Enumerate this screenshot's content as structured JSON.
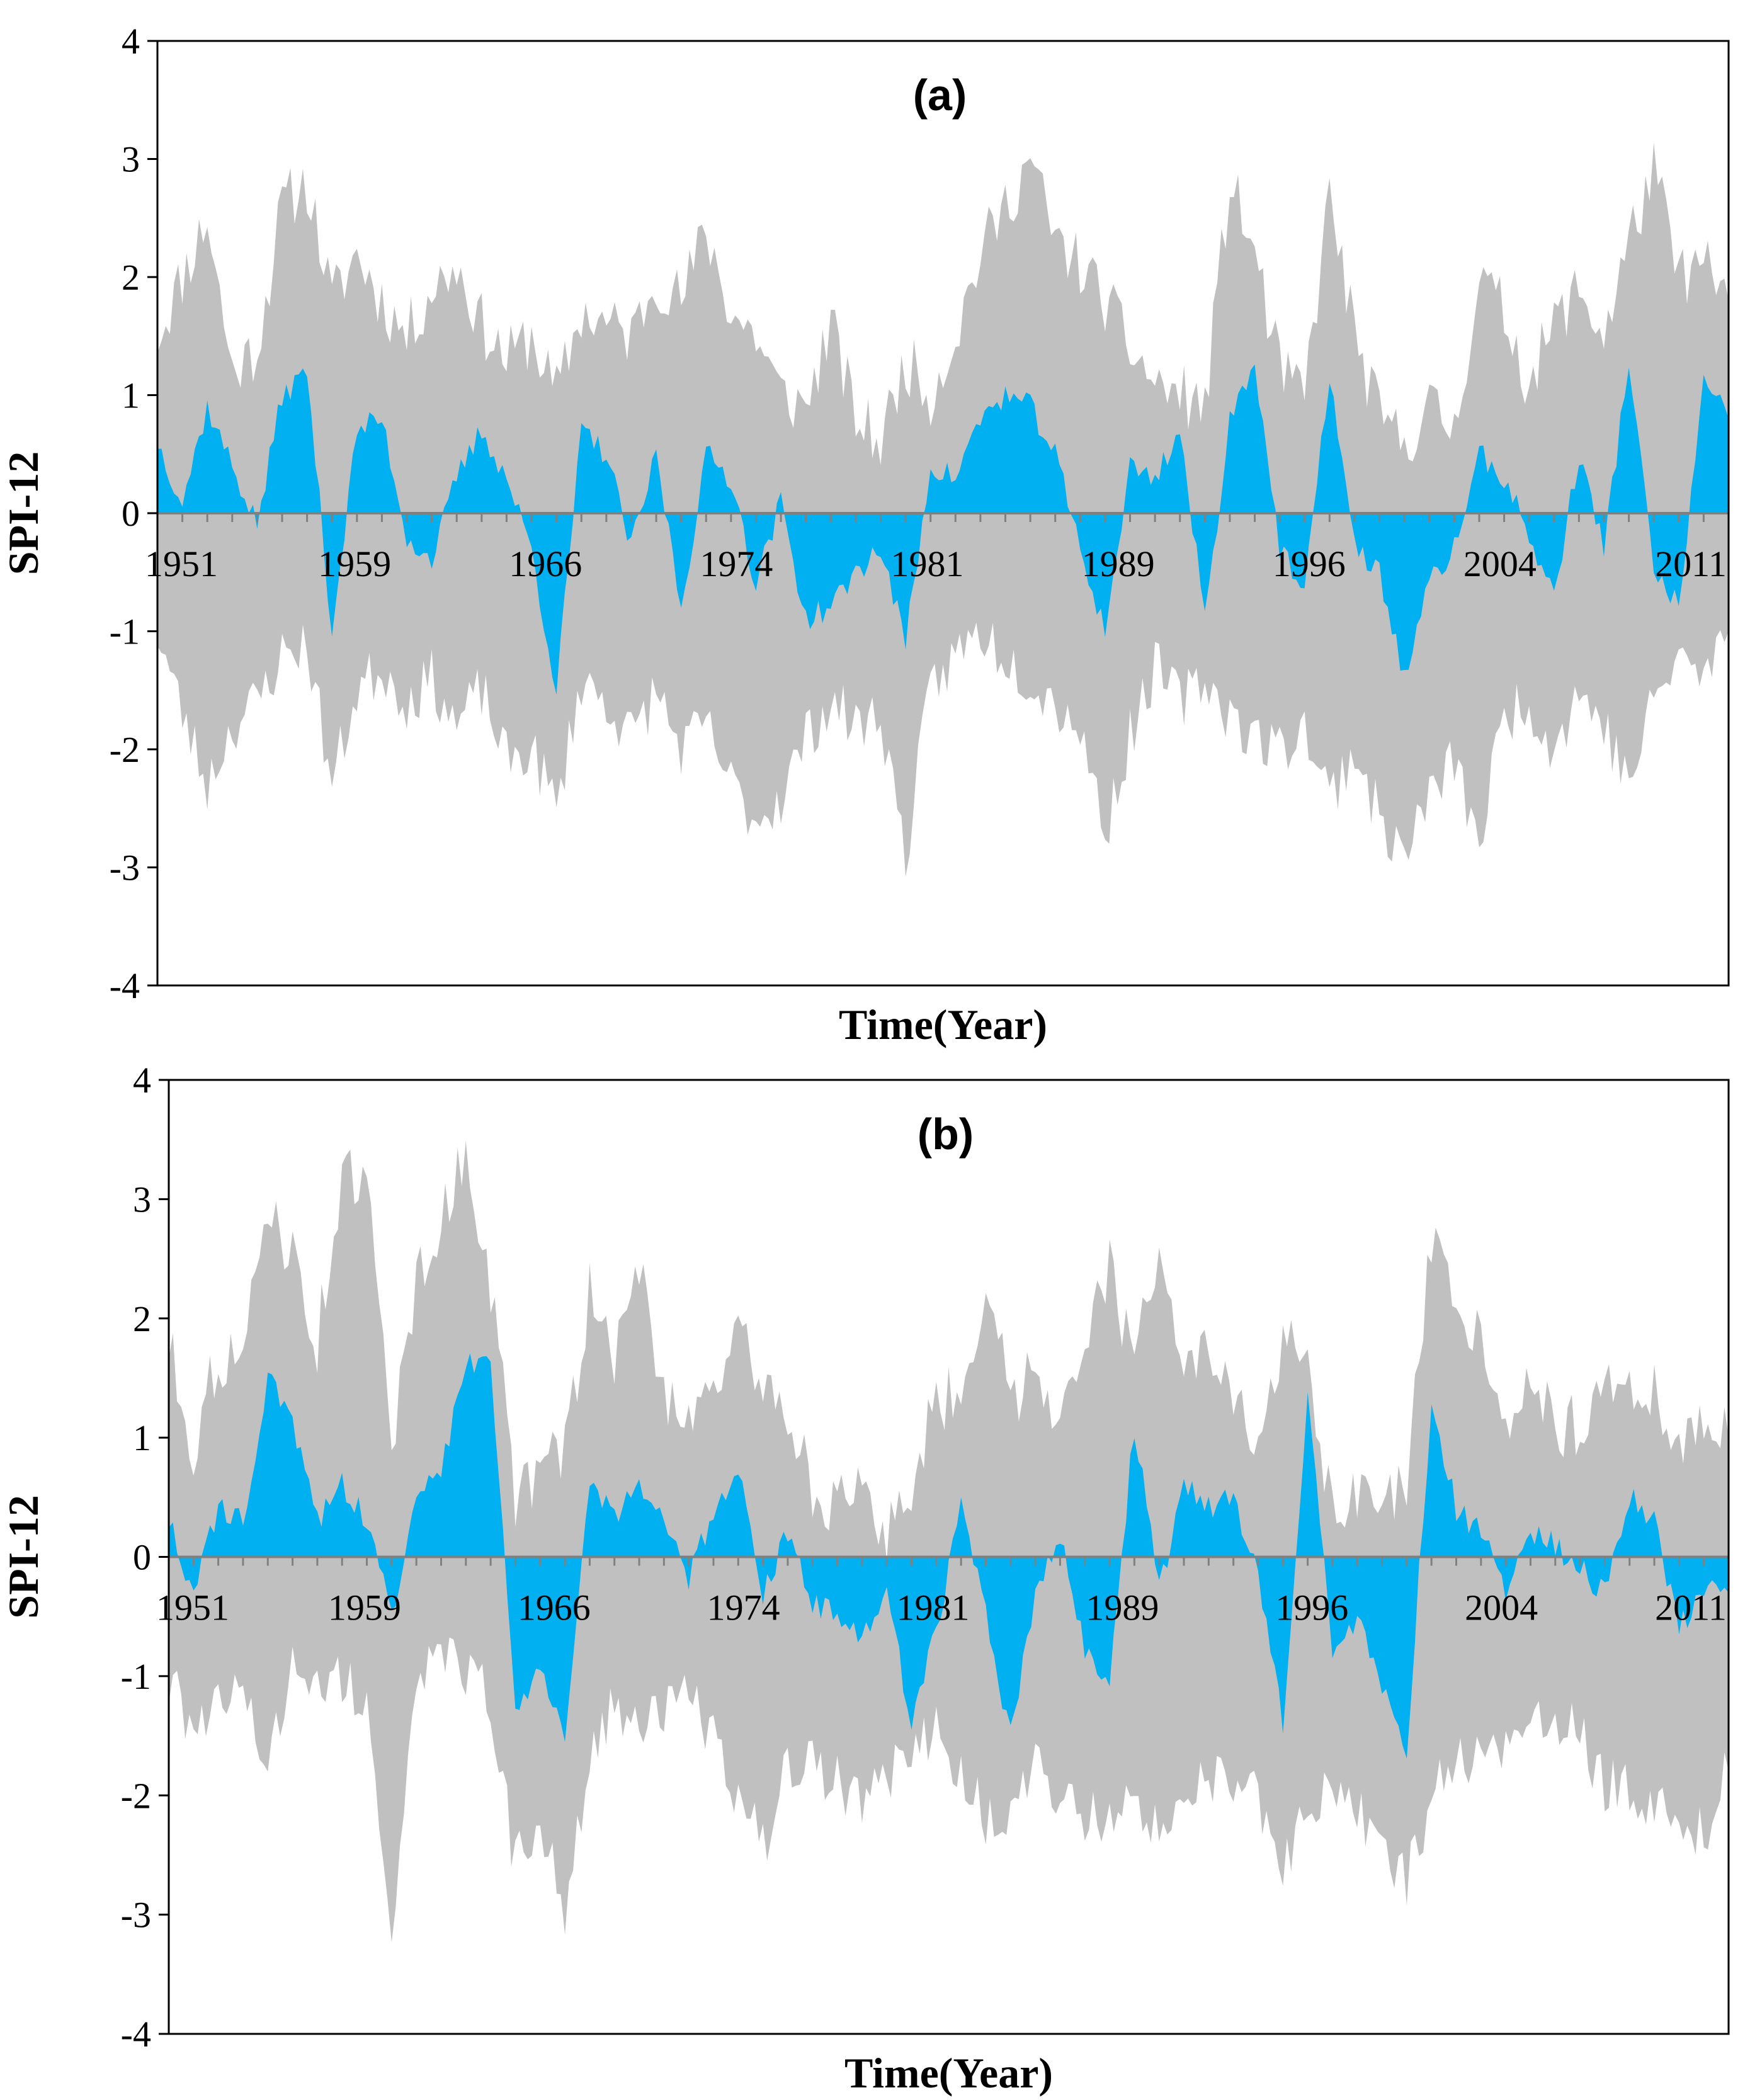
{
  "figure": {
    "colors": {
      "envelope": "#c0c0c0",
      "mean": "#00b0f0",
      "axis": "#808080",
      "frame": "#000000",
      "background": "#ffffff"
    }
  },
  "chart_data": [
    {
      "type": "area",
      "title": "(a)",
      "xlabel": "Time(Year)",
      "ylabel": "SPI-12",
      "xlim": [
        1951,
        2014
      ],
      "ylim": [
        -4,
        4
      ],
      "yticks": [
        -4,
        -3,
        -2,
        -1,
        0,
        1,
        2,
        3,
        4
      ],
      "xtick_labels": [
        "1951",
        "1959",
        "1966",
        "1974",
        "1981",
        "1989",
        "1996",
        "2004",
        "2011"
      ],
      "series": [
        {
          "name": "envelope",
          "x": [
            1951,
            1952,
            1953,
            1954,
            1955,
            1956,
            1957,
            1958,
            1959,
            1960,
            1961,
            1962,
            1963,
            1964,
            1965,
            1966,
            1967,
            1968,
            1969,
            1970,
            1971,
            1972,
            1973,
            1974,
            1975,
            1976,
            1977,
            1978,
            1979,
            1980,
            1981,
            1982,
            1983,
            1984,
            1985,
            1986,
            1987,
            1988,
            1989,
            1990,
            1991,
            1992,
            1993,
            1994,
            1995,
            1996,
            1997,
            1998,
            1999,
            2000,
            2001,
            2002,
            2003,
            2004,
            2005,
            2006,
            2007,
            2008,
            2009,
            2010,
            2011,
            2012,
            2013,
            2014
          ],
          "upper": [
            1.5,
            2.0,
            2.5,
            1.2,
            1.4,
            2.6,
            2.8,
            1.8,
            2.2,
            1.8,
            1.5,
            1.9,
            2.1,
            1.6,
            1.3,
            1.5,
            1.0,
            1.7,
            1.6,
            1.5,
            2.0,
            1.8,
            2.4,
            1.7,
            1.5,
            1.0,
            0.9,
            1.6,
            0.8,
            0.6,
            1.3,
            1.0,
            1.5,
            2.2,
            2.6,
            3.0,
            2.3,
            2.1,
            1.8,
            1.4,
            1.1,
            1.0,
            0.9,
            2.8,
            2.2,
            1.2,
            1.0,
            2.7,
            1.5,
            0.8,
            0.6,
            0.9,
            0.7,
            2.0,
            1.7,
            1.1,
            1.6,
            1.9,
            1.5,
            2.3,
            2.9,
            2.0,
            2.1,
            1.8
          ],
          "lower": [
            -1.0,
            -1.7,
            -2.3,
            -1.8,
            -1.6,
            -1.2,
            -1.1,
            -2.3,
            -1.5,
            -1.3,
            -1.6,
            -1.4,
            -1.8,
            -1.5,
            -2.1,
            -2.0,
            -2.5,
            -1.4,
            -1.6,
            -1.9,
            -1.5,
            -2.0,
            -1.8,
            -2.3,
            -2.6,
            -2.4,
            -1.9,
            -1.6,
            -1.8,
            -1.7,
            -2.9,
            -1.5,
            -1.2,
            -1.0,
            -1.2,
            -1.4,
            -1.6,
            -1.8,
            -2.7,
            -1.9,
            -1.3,
            -1.6,
            -1.4,
            -1.7,
            -1.9,
            -2.0,
            -1.8,
            -2.4,
            -2.0,
            -2.6,
            -2.9,
            -2.4,
            -2.1,
            -2.8,
            -1.7,
            -1.6,
            -2.0,
            -1.5,
            -1.8,
            -2.3,
            -1.6,
            -1.2,
            -1.4,
            -1.0
          ]
        },
        {
          "name": "mean",
          "x": [
            1951,
            1952,
            1953,
            1954,
            1955,
            1956,
            1957,
            1958,
            1959,
            1960,
            1961,
            1962,
            1963,
            1964,
            1965,
            1966,
            1967,
            1968,
            1969,
            1970,
            1971,
            1972,
            1973,
            1974,
            1975,
            1976,
            1977,
            1978,
            1979,
            1980,
            1981,
            1982,
            1983,
            1984,
            1985,
            1986,
            1987,
            1988,
            1989,
            1990,
            1991,
            1992,
            1993,
            1994,
            1995,
            1996,
            1997,
            1998,
            1999,
            2000,
            2001,
            2002,
            2003,
            2004,
            2005,
            2006,
            2007,
            2008,
            2009,
            2010,
            2011,
            2012,
            2013,
            2014
          ],
          "values": [
            0.6,
            0.1,
            0.9,
            0.4,
            -0.1,
            1.0,
            1.2,
            -1.0,
            0.7,
            0.8,
            -0.2,
            -0.4,
            0.3,
            0.7,
            0.3,
            -0.3,
            -1.5,
            0.7,
            0.5,
            -0.3,
            0.5,
            -0.8,
            0.5,
            0.3,
            -0.6,
            0.1,
            -0.9,
            -0.8,
            -0.5,
            -0.3,
            -1.1,
            0.4,
            0.3,
            0.8,
            1.0,
            0.9,
            0.5,
            -0.3,
            -1.0,
            0.4,
            0.3,
            0.7,
            -0.9,
            0.8,
            1.3,
            -0.3,
            -0.7,
            1.2,
            -0.3,
            -0.5,
            -1.4,
            -0.6,
            -0.3,
            0.5,
            0.3,
            -0.2,
            -0.7,
            0.5,
            -0.3,
            1.3,
            -0.5,
            -0.8,
            1.1,
            0.8
          ]
        }
      ]
    },
    {
      "type": "area",
      "title": "(b)",
      "xlabel": "Time(Year)",
      "ylabel": "SPI-12",
      "xlim": [
        1951,
        2014
      ],
      "ylim": [
        -4,
        4
      ],
      "yticks": [
        -4,
        -3,
        -2,
        -1,
        0,
        1,
        2,
        3,
        4
      ],
      "xtick_labels": [
        "1951",
        "1959",
        "1966",
        "1974",
        "1981",
        "1989",
        "1996",
        "2004",
        "2011"
      ],
      "series": [
        {
          "name": "envelope",
          "x": [
            1951,
            1952,
            1953,
            1954,
            1955,
            1956,
            1957,
            1958,
            1959,
            1960,
            1961,
            1962,
            1963,
            1964,
            1965,
            1966,
            1967,
            1968,
            1969,
            1970,
            1971,
            1972,
            1973,
            1974,
            1975,
            1976,
            1977,
            1978,
            1979,
            1980,
            1981,
            1982,
            1983,
            1984,
            1985,
            1986,
            1987,
            1988,
            1989,
            1990,
            1991,
            1992,
            1993,
            1994,
            1995,
            1996,
            1997,
            1998,
            1999,
            2000,
            2001,
            2002,
            2003,
            2004,
            2005,
            2006,
            2007,
            2008,
            2009,
            2010,
            2011,
            2012,
            2013,
            2014
          ],
          "upper": [
            1.8,
            0.9,
            1.7,
            1.6,
            3.0,
            2.5,
            1.8,
            3.2,
            3.1,
            1.0,
            2.3,
            2.8,
            3.4,
            2.3,
            0.5,
            0.7,
            0.9,
            2.2,
            1.7,
            2.4,
            1.4,
            1.2,
            1.5,
            1.8,
            1.5,
            1.2,
            0.6,
            0.4,
            0.5,
            0.2,
            0.6,
            1.3,
            1.4,
            2.3,
            1.3,
            1.6,
            1.2,
            1.9,
            2.4,
            1.6,
            2.7,
            1.5,
            1.7,
            1.3,
            0.8,
            1.9,
            1.5,
            0.3,
            0.5,
            0.4,
            0.6,
            2.6,
            2.0,
            1.9,
            1.2,
            1.5,
            1.1,
            1.1,
            1.6,
            1.3,
            1.4,
            0.9,
            1.2,
            1.0
          ],
          "lower": [
            -1.1,
            -1.4,
            -1.3,
            -1.2,
            -1.7,
            -0.9,
            -1.0,
            -1.1,
            -1.2,
            -3.1,
            -1.0,
            -0.8,
            -1.0,
            -1.2,
            -2.6,
            -2.2,
            -3.0,
            -1.6,
            -1.2,
            -1.5,
            -1.3,
            -1.2,
            -1.5,
            -2.1,
            -2.4,
            -1.8,
            -1.7,
            -1.9,
            -2.0,
            -1.9,
            -1.6,
            -1.4,
            -1.8,
            -2.2,
            -2.1,
            -1.8,
            -2.0,
            -2.2,
            -2.2,
            -1.9,
            -2.4,
            -1.9,
            -1.8,
            -1.9,
            -2.0,
            -2.6,
            -2.2,
            -1.9,
            -2.1,
            -2.4,
            -2.7,
            -2.0,
            -1.8,
            -1.5,
            -1.6,
            -1.4,
            -1.3,
            -1.5,
            -1.9,
            -2.0,
            -2.1,
            -2.2,
            -2.3,
            -1.8
          ]
        },
        {
          "name": "mean",
          "x": [
            1951,
            1952,
            1953,
            1954,
            1955,
            1956,
            1957,
            1958,
            1959,
            1960,
            1961,
            1962,
            1963,
            1964,
            1965,
            1966,
            1967,
            1968,
            1969,
            1970,
            1971,
            1972,
            1973,
            1974,
            1975,
            1976,
            1977,
            1978,
            1979,
            1980,
            1981,
            1982,
            1983,
            1984,
            1985,
            1986,
            1987,
            1988,
            1989,
            1990,
            1991,
            1992,
            1993,
            1994,
            1995,
            1996,
            1997,
            1998,
            1999,
            2000,
            2001,
            2002,
            2003,
            2004,
            2005,
            2006,
            2007,
            2008,
            2009,
            2010,
            2011,
            2012,
            2013,
            2014
          ],
          "values": [
            0.3,
            -0.3,
            0.4,
            0.3,
            1.5,
            1.1,
            0.3,
            0.6,
            0.3,
            -0.5,
            0.6,
            0.7,
            1.6,
            1.7,
            -1.3,
            -0.9,
            -1.6,
            0.7,
            0.3,
            0.6,
            0.3,
            -0.2,
            0.4,
            0.7,
            -0.3,
            0.2,
            -0.4,
            -0.5,
            -0.7,
            -0.3,
            -1.4,
            -0.6,
            0.4,
            -0.5,
            -1.5,
            -0.3,
            0.2,
            -0.8,
            -1.0,
            1.1,
            -0.3,
            0.6,
            0.4,
            0.5,
            -0.2,
            -1.4,
            1.3,
            -0.8,
            -0.5,
            -1.1,
            -1.6,
            1.3,
            0.4,
            0.2,
            -0.3,
            0.2,
            0.1,
            -0.1,
            -0.3,
            0.5,
            0.3,
            -0.6,
            -0.3,
            -0.3
          ]
        }
      ]
    }
  ]
}
